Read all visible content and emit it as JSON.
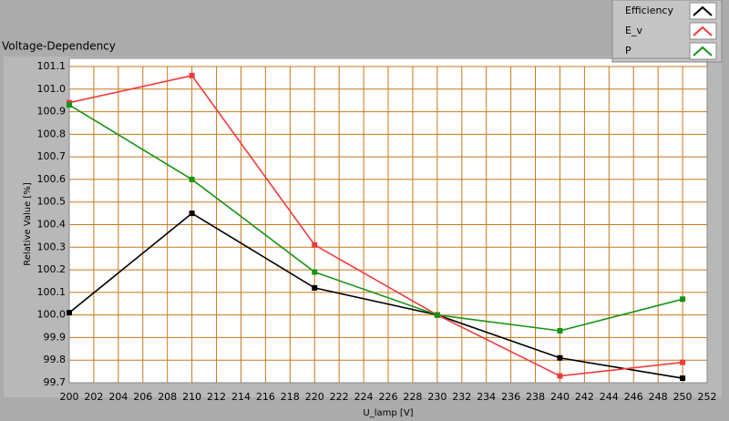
{
  "chart_data": {
    "type": "line",
    "title": "Voltage-Dependency",
    "x_label": "U_lamp [V]",
    "y_label": "Relative Value [%]",
    "x": [
      200,
      210,
      220,
      230,
      240,
      250
    ],
    "series": [
      {
        "name": "Efficiency",
        "color": "#000000",
        "values": [
          100.01,
          100.45,
          100.12,
          100.0,
          99.81,
          99.72
        ]
      },
      {
        "name": "E_v",
        "color": "#f03c3c",
        "values": [
          100.94,
          101.06,
          100.31,
          100.0,
          99.73,
          99.79
        ]
      },
      {
        "name": "P",
        "color": "#169416",
        "values": [
          100.93,
          100.6,
          100.19,
          100.0,
          99.93,
          100.07
        ]
      }
    ],
    "xlim": [
      200,
      252
    ],
    "xticks": [
      200,
      202,
      204,
      206,
      208,
      210,
      212,
      214,
      216,
      218,
      220,
      222,
      224,
      226,
      228,
      230,
      232,
      234,
      236,
      238,
      240,
      242,
      244,
      246,
      248,
      250,
      252
    ],
    "ylim": [
      99.7,
      101.1
    ],
    "yticks": [
      99.7,
      99.8,
      99.9,
      {
        "value": 100,
        "label": "100.0"
      },
      100.1,
      100.2,
      100.3,
      100.4,
      100.5,
      100.6,
      100.7,
      100.8,
      100.9,
      {
        "value": 101,
        "label": "101.0"
      },
      101.1
    ],
    "grid": true,
    "legend": "top-right"
  }
}
